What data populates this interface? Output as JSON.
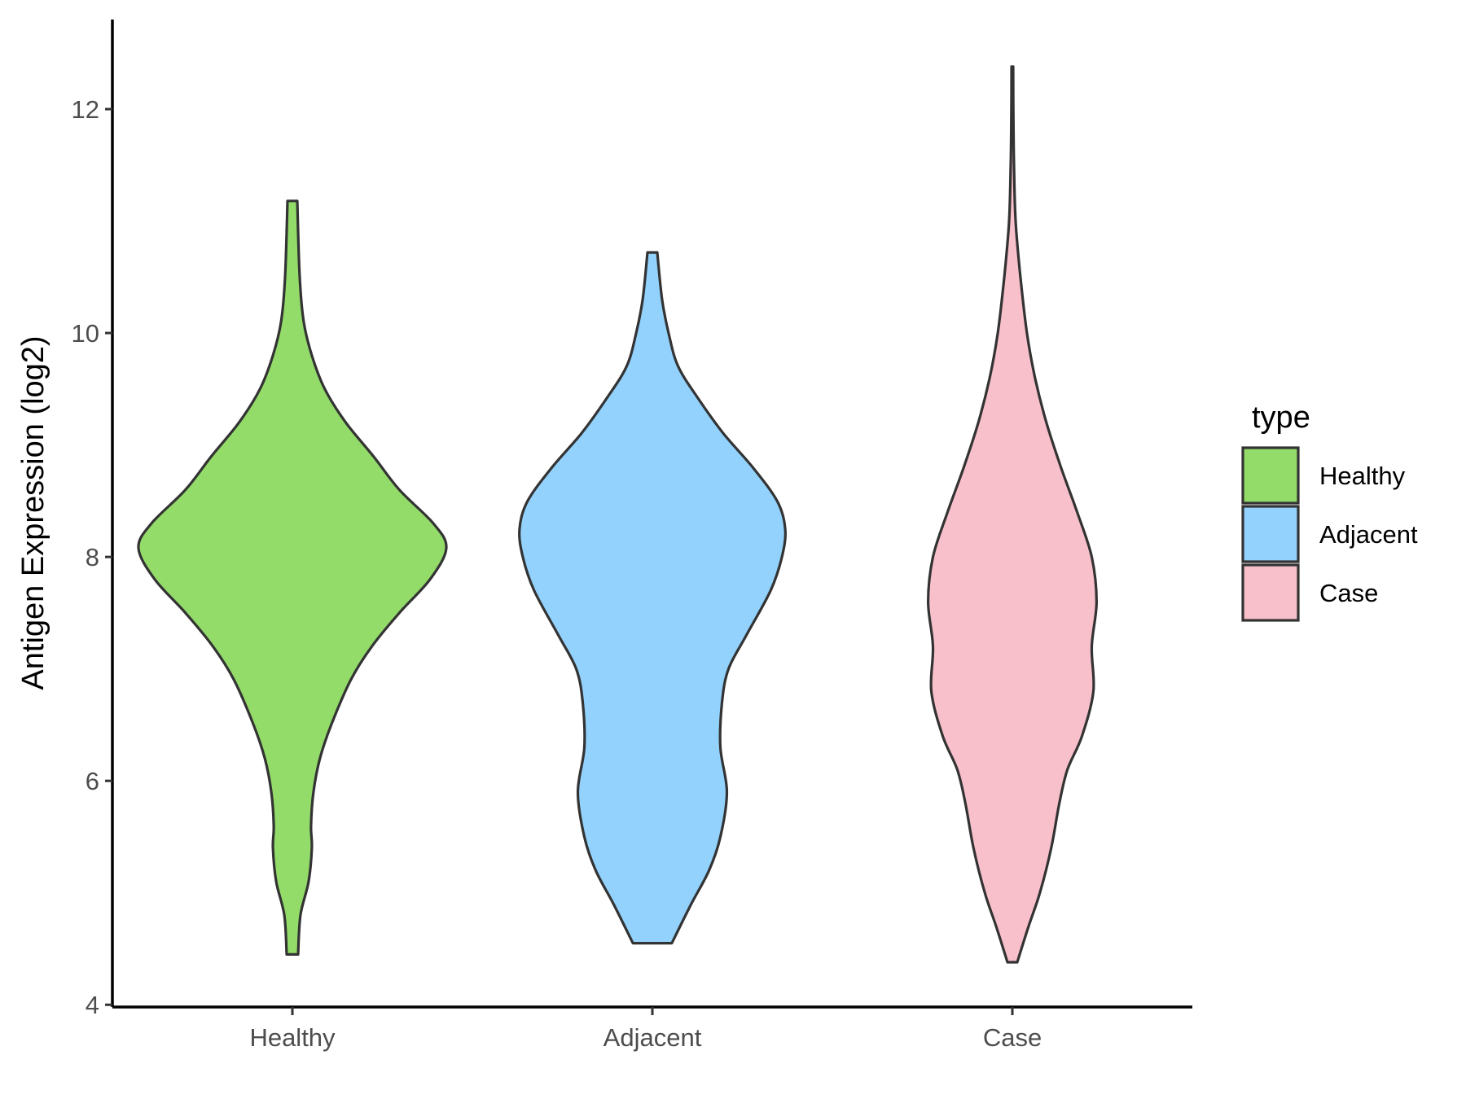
{
  "chart_data": {
    "type": "violin",
    "title": "",
    "xlabel": "",
    "ylabel": "Antigen Expression (log2)",
    "ylim": [
      3.98,
      12.8
    ],
    "yticks": [
      4,
      6,
      8,
      10,
      12
    ],
    "categories": [
      "Healthy",
      "Adjacent",
      "Case"
    ],
    "grid": false,
    "legend": {
      "title": "type",
      "placement": "right",
      "entries": [
        "Healthy",
        "Adjacent",
        "Case"
      ]
    },
    "series": [
      {
        "name": "Healthy",
        "color": "#93dc6a",
        "range": [
          4.45,
          11.18
        ],
        "profile": [
          [
            4.45,
            0.035
          ],
          [
            4.8,
            0.05
          ],
          [
            5.1,
            0.1
          ],
          [
            5.4,
            0.12
          ],
          [
            5.6,
            0.115
          ],
          [
            5.9,
            0.13
          ],
          [
            6.2,
            0.17
          ],
          [
            6.5,
            0.24
          ],
          [
            6.9,
            0.36
          ],
          [
            7.2,
            0.49
          ],
          [
            7.5,
            0.66
          ],
          [
            7.8,
            0.85
          ],
          [
            8.08,
            0.95
          ],
          [
            8.3,
            0.87
          ],
          [
            8.6,
            0.66
          ],
          [
            8.9,
            0.5
          ],
          [
            9.2,
            0.33
          ],
          [
            9.5,
            0.2
          ],
          [
            9.8,
            0.12
          ],
          [
            10.1,
            0.07
          ],
          [
            10.5,
            0.045
          ],
          [
            11.18,
            0.03
          ]
        ]
      },
      {
        "name": "Adjacent",
        "color": "#93d2fd",
        "range": [
          4.55,
          10.72
        ],
        "profile": [
          [
            4.55,
            0.12
          ],
          [
            4.9,
            0.24
          ],
          [
            5.2,
            0.35
          ],
          [
            5.5,
            0.42
          ],
          [
            5.9,
            0.46
          ],
          [
            6.3,
            0.42
          ],
          [
            6.7,
            0.43
          ],
          [
            7.0,
            0.47
          ],
          [
            7.3,
            0.58
          ],
          [
            7.7,
            0.73
          ],
          [
            8.0,
            0.8
          ],
          [
            8.25,
            0.82
          ],
          [
            8.5,
            0.77
          ],
          [
            8.8,
            0.62
          ],
          [
            9.1,
            0.44
          ],
          [
            9.4,
            0.29
          ],
          [
            9.7,
            0.16
          ],
          [
            10.0,
            0.1
          ],
          [
            10.3,
            0.06
          ],
          [
            10.72,
            0.03
          ]
        ]
      },
      {
        "name": "Case",
        "color": "#f8c0cb",
        "range": [
          4.38,
          12.38
        ],
        "profile": [
          [
            4.38,
            0.03
          ],
          [
            4.7,
            0.1
          ],
          [
            5.0,
            0.17
          ],
          [
            5.4,
            0.24
          ],
          [
            5.8,
            0.29
          ],
          [
            6.1,
            0.34
          ],
          [
            6.4,
            0.43
          ],
          [
            6.8,
            0.5
          ],
          [
            7.2,
            0.49
          ],
          [
            7.6,
            0.52
          ],
          [
            8.0,
            0.49
          ],
          [
            8.4,
            0.4
          ],
          [
            8.8,
            0.3
          ],
          [
            9.2,
            0.21
          ],
          [
            9.6,
            0.14
          ],
          [
            10.0,
            0.09
          ],
          [
            10.5,
            0.05
          ],
          [
            11.0,
            0.02
          ],
          [
            11.5,
            0.01
          ],
          [
            12.0,
            0.006
          ],
          [
            12.38,
            0.005
          ]
        ]
      }
    ]
  }
}
